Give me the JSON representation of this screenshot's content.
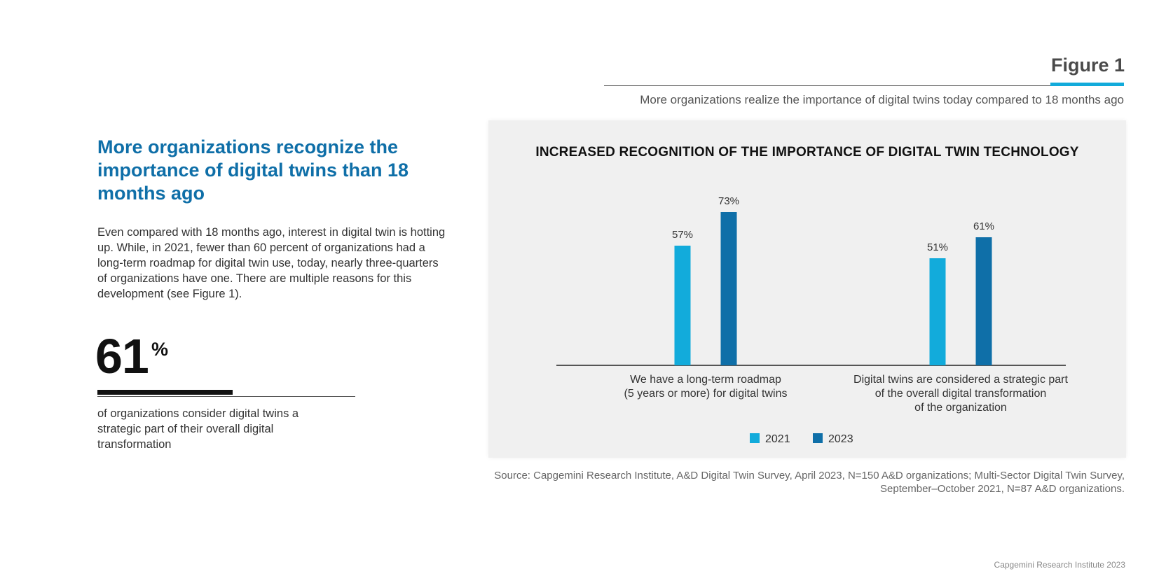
{
  "figure": {
    "label": "Figure 1",
    "subtitle": "More organizations realize the importance of digital twins today compared to 18 months ago",
    "accent_color": "#12abdb"
  },
  "left": {
    "headline": "More organizations recognize the importance of digital twins than 18 months ago",
    "body": "Even compared with 18 months ago, interest in digital twin is hotting up. While, in 2021, fewer than 60 percent of organizations had a long-term roadmap for digital twin use, today, nearly three-quarters of organizations have one. There are multiple reasons for this development (see Figure 1).",
    "stat_value": "61",
    "stat_unit": "%",
    "stat_caption": "of organizations consider digital twins a strategic part of their overall digital transformation",
    "headline_color": "#0f6fa8"
  },
  "chart_data": {
    "type": "bar",
    "title": "INCREASED RECOGNITION OF THE IMPORTANCE OF DIGITAL TWIN TECHNOLOGY",
    "categories": [
      [
        "We have a long-term roadmap",
        "(5 years or more) for digital twins"
      ],
      [
        "Digital twins are considered a strategic part",
        "of the overall digital transformation",
        "of the organization"
      ]
    ],
    "series": [
      {
        "name": "2021",
        "values": [
          57,
          51
        ],
        "labels": [
          "57%",
          "51%"
        ],
        "color": "#12abdb"
      },
      {
        "name": "2023",
        "values": [
          73,
          61
        ],
        "labels": [
          "73%",
          "61%"
        ],
        "color": "#0f6fa8"
      }
    ],
    "xlabel": "",
    "ylabel": "",
    "ylim": [
      0,
      100
    ],
    "grid": false,
    "legend": "bottom-center"
  },
  "source": "Source: Capgemini Research Institute, A&D Digital Twin Survey, April 2023, N=150 A&D organizations; Multi-Sector Digital Twin Survey, September–October 2021, N=87 A&D organizations.",
  "footer": "Capgemini Research Institute 2023"
}
